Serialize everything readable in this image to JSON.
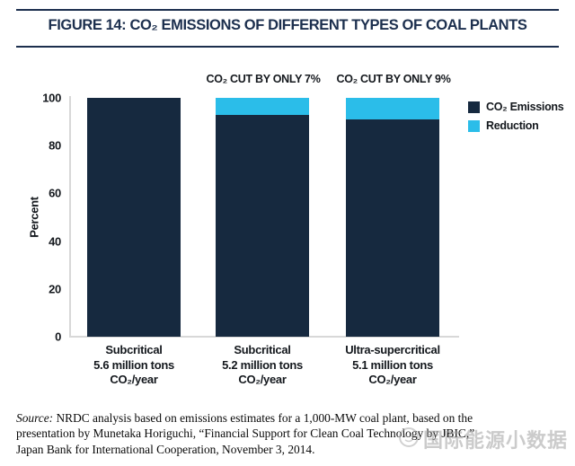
{
  "figure": {
    "title": "FIGURE 14: CO₂ EMISSIONS OF DIFFERENT TYPES OF COAL PLANTS"
  },
  "chart_data": {
    "type": "bar",
    "stacked": true,
    "title": "FIGURE 14: CO₂ EMISSIONS OF DIFFERENT TYPES OF COAL PLANTS",
    "ylabel": "Percent",
    "ylim": [
      0,
      100
    ],
    "yticks": [
      0,
      20,
      40,
      60,
      80,
      100
    ],
    "grid": false,
    "legend_position": "right",
    "categories": [
      [
        "Subcritical",
        "5.6 million tons",
        "CO₂/year"
      ],
      [
        "Subcritical",
        "5.2 million tons",
        "CO₂/year"
      ],
      [
        "Ultra-supercritical",
        "5.1 million tons",
        "CO₂/year"
      ]
    ],
    "series": [
      {
        "name": "CO₂ Emissions",
        "color": "#16293f",
        "values": [
          100,
          93,
          91
        ]
      },
      {
        "name": "Reduction",
        "color": "#2bbde9",
        "values": [
          0,
          7,
          9
        ]
      }
    ],
    "annotations": [
      "",
      "CO₂ CUT BY ONLY 7%",
      "CO₂ CUT BY ONLY 9%"
    ]
  },
  "source": {
    "label": "Source:",
    "lines": [
      "NRDC analysis based on emissions estimates for a 1,000-MW coal plant, based on the",
      "presentation by Munetaka Horiguchi, “Financial Support for Clean Coal Technology by JBIC,”",
      "Japan Bank for International Cooperation, November 3, 2014."
    ]
  },
  "watermark": {
    "text": "国际能源小数据"
  },
  "colors": {
    "navy": "#16293f",
    "cyan": "#2bbde9",
    "title_navy": "#1c2f4e",
    "axis_gray": "#d8d8d8"
  }
}
